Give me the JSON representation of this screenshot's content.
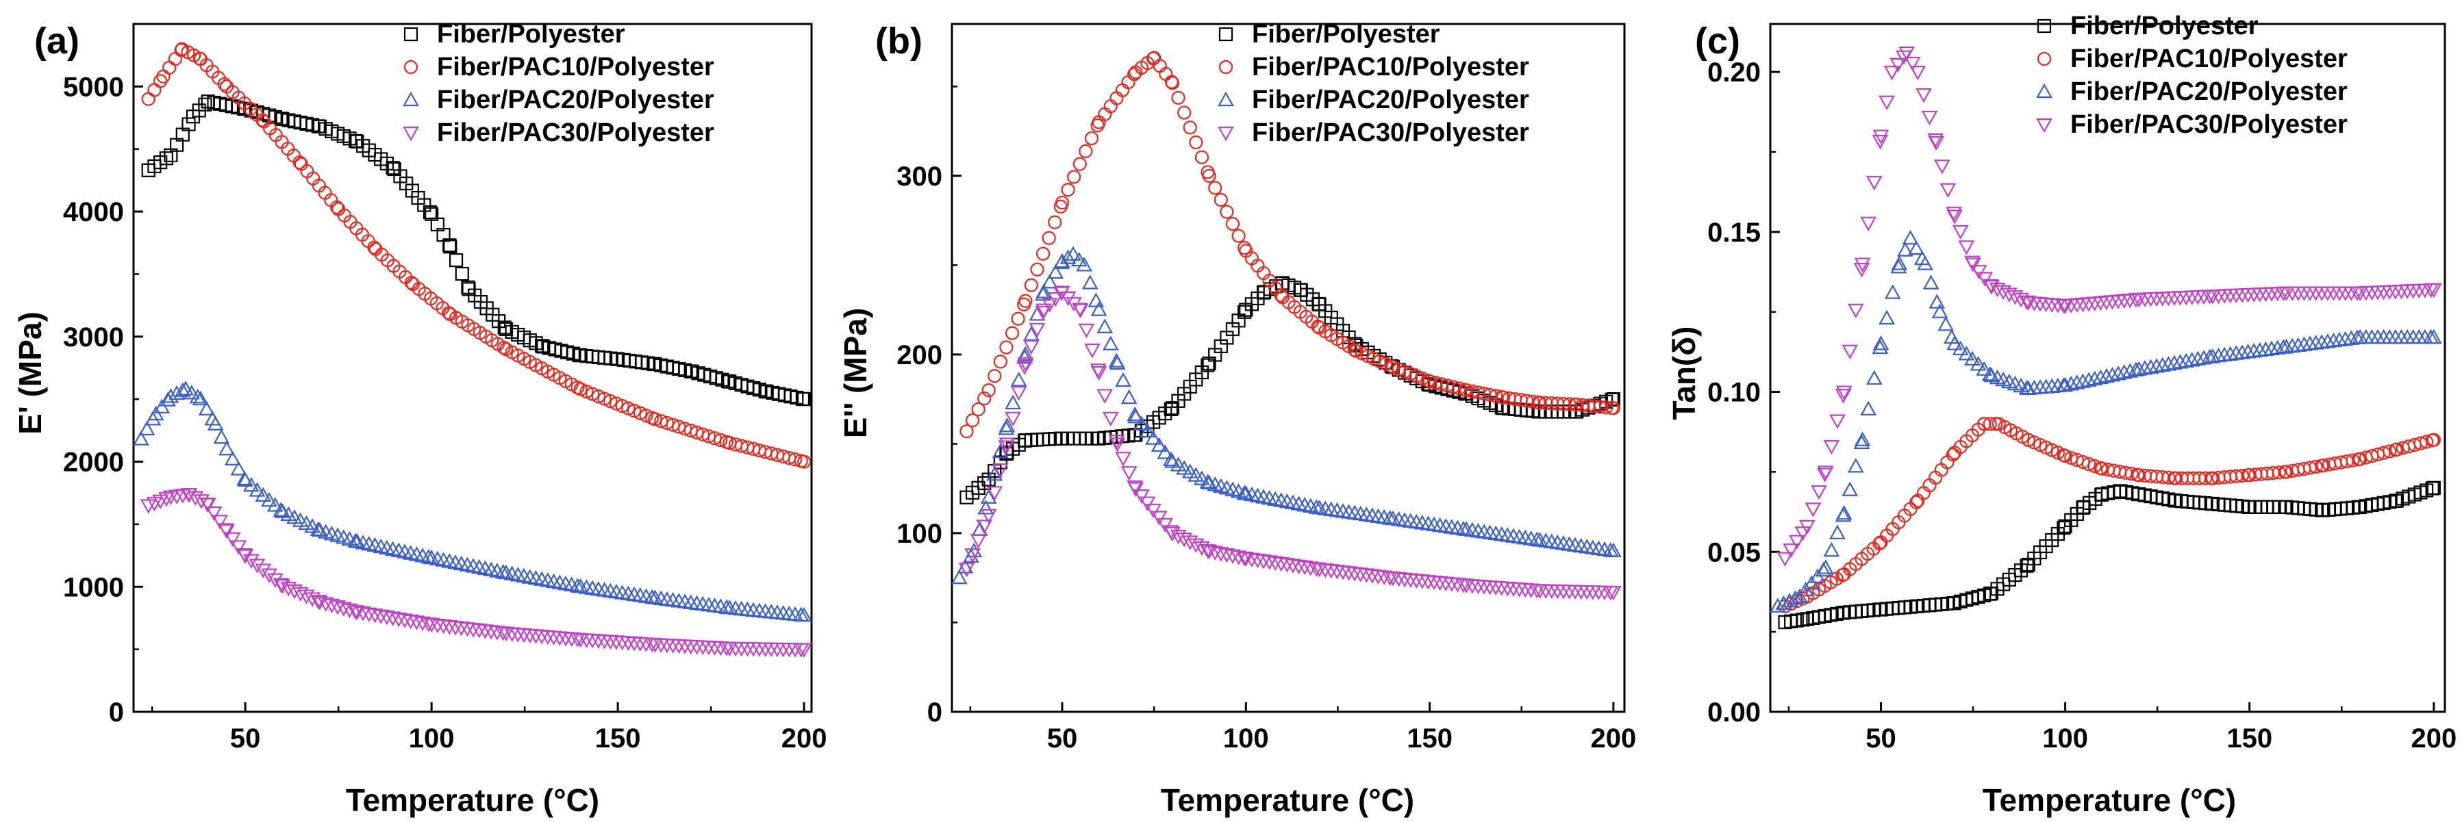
{
  "figure": {
    "panels": [
      "a",
      "b",
      "c"
    ]
  },
  "series_styles": [
    {
      "name": "Fiber/Polyester",
      "marker": "square",
      "color": "#000000"
    },
    {
      "name": "Fiber/PAC10/Polyester",
      "marker": "circle",
      "color": "#e8281e"
    },
    {
      "name": "Fiber/PAC20/Polyester",
      "marker": "triangle-up",
      "color": "#3a5fc8"
    },
    {
      "name": "Fiber/PAC30/Polyester",
      "marker": "triangle-down",
      "color": "#c040c8"
    }
  ],
  "chart_data": [
    {
      "type": "scatter",
      "panel_label": "(a)",
      "title": "",
      "xlabel": "Temperature (°C)",
      "ylabel": "E' (MPa)",
      "xlim": [
        20,
        202
      ],
      "ylim": [
        0,
        5500
      ],
      "xticks": [
        50,
        100,
        150,
        200
      ],
      "yticks": [
        0,
        1000,
        2000,
        3000,
        4000,
        5000
      ],
      "legend_position": "top-right",
      "legend": [
        "Fiber/Polyester",
        "Fiber/PAC10/Polyester",
        "Fiber/PAC20/Polyester",
        "Fiber/PAC30/Polyester"
      ],
      "series": [
        {
          "name": "Fiber/Polyester",
          "x": [
            24,
            30,
            36,
            40,
            50,
            60,
            70,
            80,
            90,
            100,
            105,
            110,
            120,
            130,
            140,
            150,
            160,
            170,
            180,
            190,
            200
          ],
          "y": [
            4330,
            4450,
            4760,
            4880,
            4820,
            4740,
            4680,
            4560,
            4340,
            3980,
            3720,
            3380,
            3060,
            2920,
            2850,
            2820,
            2780,
            2720,
            2640,
            2560,
            2500
          ]
        },
        {
          "name": "Fiber/PAC10/Polyester",
          "x": [
            24,
            28,
            33,
            38,
            45,
            55,
            65,
            75,
            85,
            95,
            105,
            120,
            140,
            160,
            180,
            200
          ],
          "y": [
            4900,
            5080,
            5300,
            5220,
            5000,
            4720,
            4380,
            4020,
            3700,
            3420,
            3180,
            2900,
            2580,
            2340,
            2150,
            2000
          ]
        },
        {
          "name": "Fiber/PAC20/Polyester",
          "x": [
            22,
            26,
            30,
            34,
            38,
            42,
            45,
            50,
            60,
            70,
            80,
            100,
            120,
            140,
            160,
            180,
            200
          ],
          "y": [
            2180,
            2380,
            2520,
            2580,
            2500,
            2300,
            2100,
            1850,
            1600,
            1450,
            1360,
            1230,
            1110,
            1000,
            910,
            830,
            770
          ]
        },
        {
          "name": "Fiber/PAC30/Polyester",
          "x": [
            24,
            30,
            35,
            40,
            45,
            50,
            60,
            70,
            80,
            100,
            120,
            140,
            160,
            180,
            200
          ],
          "y": [
            1650,
            1720,
            1740,
            1660,
            1450,
            1250,
            1010,
            880,
            800,
            700,
            630,
            580,
            540,
            510,
            500
          ]
        }
      ]
    },
    {
      "type": "scatter",
      "panel_label": "(b)",
      "title": "",
      "xlabel": "Temperature (°C)",
      "ylabel": "E'' (MPa)",
      "xlim": [
        20,
        203
      ],
      "ylim": [
        0,
        385
      ],
      "xticks": [
        50,
        100,
        150,
        200
      ],
      "yticks": [
        0,
        100,
        200,
        300
      ],
      "legend_position": "top-right",
      "legend": [
        "Fiber/Polyester",
        "Fiber/PAC10/Polyester",
        "Fiber/PAC20/Polyester",
        "Fiber/PAC30/Polyester"
      ],
      "series": [
        {
          "name": "Fiber/Polyester",
          "x": [
            24,
            30,
            35,
            40,
            50,
            60,
            70,
            80,
            90,
            100,
            105,
            110,
            115,
            120,
            130,
            140,
            150,
            160,
            170,
            180,
            190,
            200
          ],
          "y": [
            120,
            130,
            145,
            152,
            153,
            153,
            155,
            170,
            195,
            225,
            235,
            240,
            236,
            228,
            205,
            193,
            183,
            178,
            170,
            168,
            168,
            175
          ]
        },
        {
          "name": "Fiber/PAC10/Polyester",
          "x": [
            24,
            30,
            40,
            50,
            60,
            70,
            75,
            80,
            90,
            100,
            110,
            120,
            130,
            140,
            150,
            160,
            170,
            180,
            190,
            200
          ],
          "y": [
            157,
            180,
            230,
            285,
            330,
            358,
            366,
            352,
            300,
            258,
            232,
            215,
            202,
            193,
            185,
            180,
            176,
            173,
            172,
            170
          ]
        },
        {
          "name": "Fiber/PAC20/Polyester",
          "x": [
            22,
            26,
            30,
            35,
            40,
            45,
            50,
            53,
            56,
            60,
            65,
            70,
            80,
            90,
            100,
            120,
            140,
            160,
            180,
            200
          ],
          "y": [
            75,
            90,
            120,
            160,
            200,
            235,
            252,
            256,
            250,
            225,
            195,
            165,
            140,
            128,
            122,
            114,
            108,
            102,
            96,
            90
          ]
        },
        {
          "name": "Fiber/PAC30/Polyester",
          "x": [
            24,
            30,
            35,
            40,
            45,
            50,
            55,
            60,
            65,
            70,
            80,
            90,
            100,
            120,
            140,
            160,
            180,
            200
          ],
          "y": [
            80,
            110,
            150,
            195,
            225,
            235,
            225,
            190,
            150,
            125,
            100,
            90,
            86,
            80,
            75,
            71,
            68,
            67
          ]
        }
      ]
    },
    {
      "type": "scatter",
      "panel_label": "(c)",
      "title": "",
      "xlabel": "Temperature (°C)",
      "ylabel": "Tan(δ)",
      "xlim": [
        20,
        203
      ],
      "ylim": [
        0,
        0.215
      ],
      "xticks": [
        50,
        100,
        150,
        200
      ],
      "yticks": [
        0.0,
        0.05,
        0.1,
        0.15,
        0.2
      ],
      "ytick_labels": [
        "0.00",
        "0.05",
        "0.10",
        "0.15",
        "0.20"
      ],
      "legend_position": "top-right",
      "legend": [
        "Fiber/Polyester",
        "Fiber/PAC10/Polyester",
        "Fiber/PAC20/Polyester",
        "Fiber/PAC30/Polyester"
      ],
      "series": [
        {
          "name": "Fiber/Polyester",
          "x": [
            24,
            30,
            40,
            50,
            60,
            70,
            80,
            90,
            100,
            105,
            110,
            115,
            120,
            130,
            140,
            150,
            160,
            170,
            180,
            190,
            200
          ],
          "y": [
            0.028,
            0.029,
            0.031,
            0.032,
            0.033,
            0.034,
            0.037,
            0.046,
            0.058,
            0.064,
            0.068,
            0.069,
            0.068,
            0.066,
            0.065,
            0.064,
            0.064,
            0.063,
            0.064,
            0.066,
            0.07
          ]
        },
        {
          "name": "Fiber/PAC10/Polyester",
          "x": [
            24,
            30,
            40,
            50,
            60,
            70,
            78,
            82,
            90,
            100,
            110,
            120,
            130,
            140,
            150,
            160,
            170,
            180,
            190,
            200
          ],
          "y": [
            0.033,
            0.036,
            0.043,
            0.053,
            0.066,
            0.081,
            0.09,
            0.09,
            0.085,
            0.08,
            0.076,
            0.074,
            0.073,
            0.073,
            0.074,
            0.075,
            0.077,
            0.079,
            0.082,
            0.085
          ]
        },
        {
          "name": "Fiber/PAC20/Polyester",
          "x": [
            22,
            28,
            35,
            40,
            45,
            50,
            55,
            58,
            62,
            66,
            70,
            80,
            90,
            100,
            120,
            140,
            160,
            180,
            200
          ],
          "y": [
            0.033,
            0.036,
            0.045,
            0.062,
            0.085,
            0.115,
            0.14,
            0.148,
            0.14,
            0.125,
            0.115,
            0.105,
            0.101,
            0.102,
            0.107,
            0.111,
            0.114,
            0.117,
            0.117
          ]
        },
        {
          "name": "Fiber/PAC30/Polyester",
          "x": [
            24,
            30,
            35,
            40,
            45,
            50,
            53,
            57,
            60,
            65,
            70,
            75,
            80,
            90,
            100,
            120,
            140,
            160,
            180,
            200
          ],
          "y": [
            0.048,
            0.058,
            0.075,
            0.1,
            0.14,
            0.18,
            0.2,
            0.206,
            0.2,
            0.178,
            0.155,
            0.14,
            0.133,
            0.128,
            0.127,
            0.129,
            0.13,
            0.131,
            0.131,
            0.132
          ]
        }
      ]
    }
  ]
}
